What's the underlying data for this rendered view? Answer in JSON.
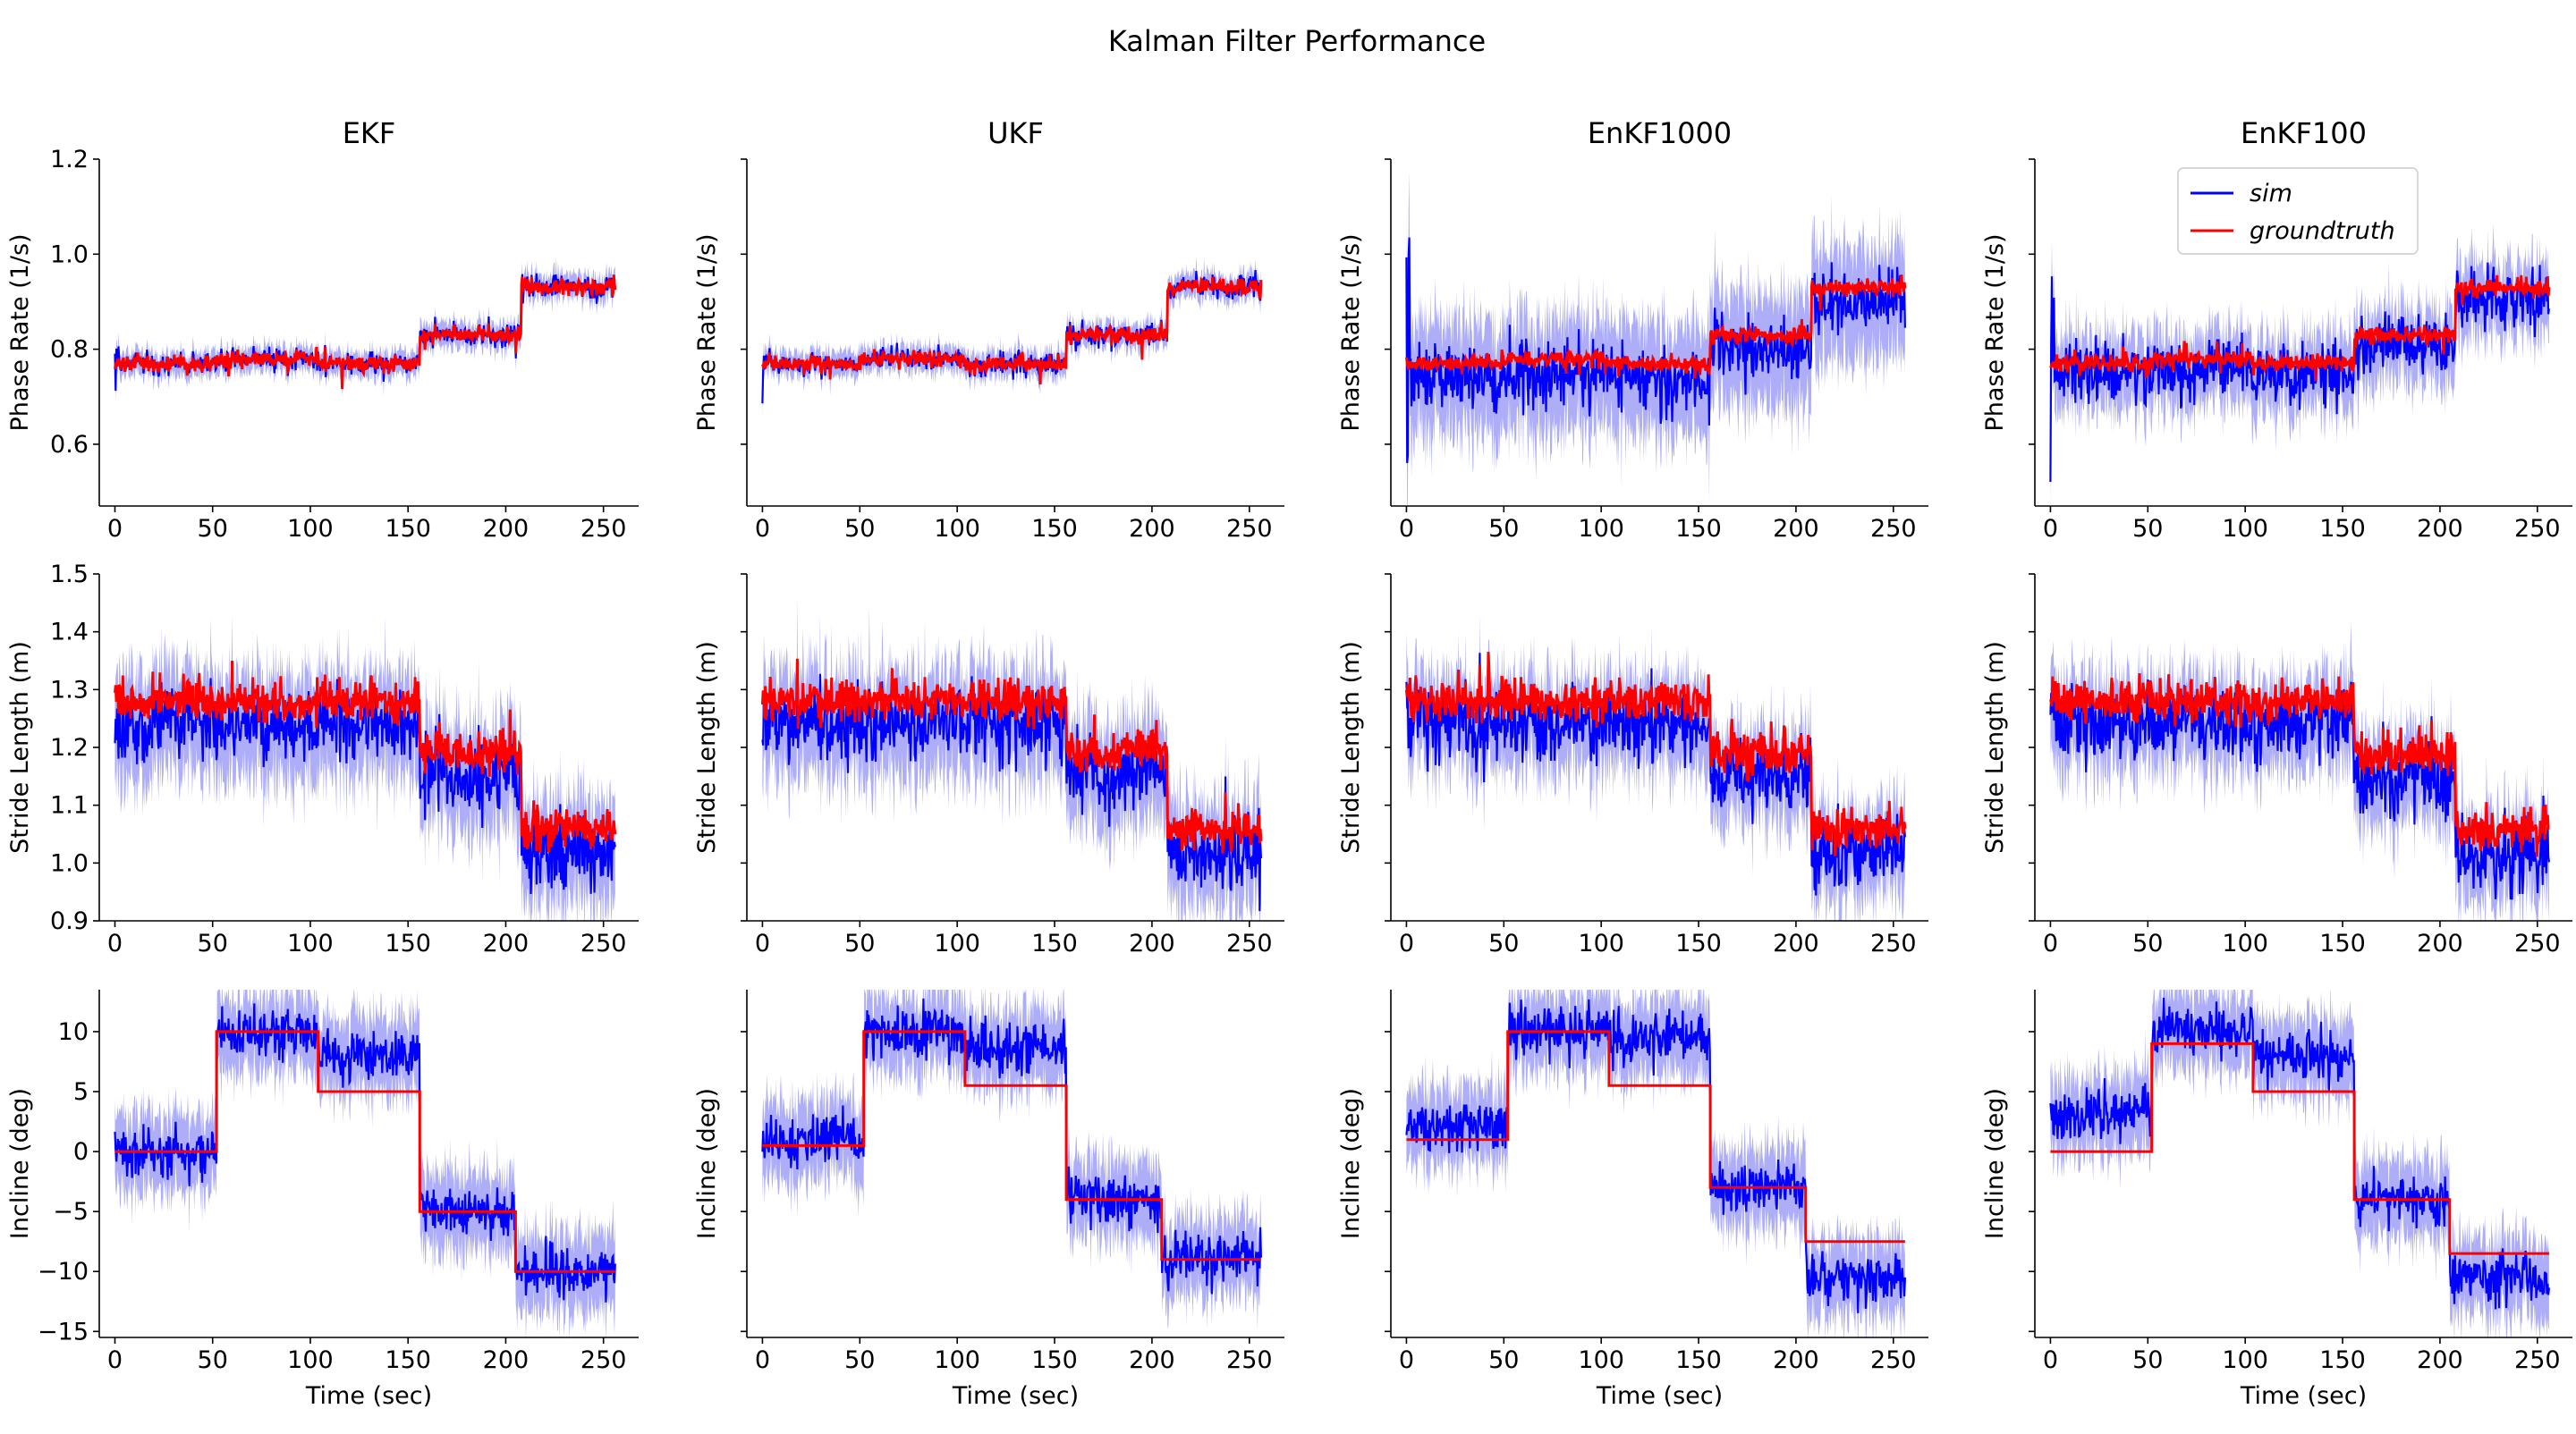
{
  "figure_title": "Kalman Filter Performance",
  "colors": {
    "sim": "#0000ff",
    "sim_band": "#8c8cf5",
    "groundtruth": "#ff0000",
    "axis": "#000000"
  },
  "legend": {
    "placement": "top-right of EnKF100 Phase Rate panel",
    "entries": [
      "sim",
      "groundtruth"
    ]
  },
  "chart_data": {
    "type": "line",
    "columns": [
      "EKF",
      "UKF",
      "EnKF1000",
      "EnKF100"
    ],
    "rows": [
      {
        "key": "phase",
        "ylabel": "Phase Rate (1/s)",
        "ylim": [
          0.47,
          1.2
        ],
        "yticks": [
          0.6,
          0.8,
          1.0,
          1.2
        ],
        "ytick_labels": [
          "0.6",
          "0.8",
          "1.0",
          "1.2"
        ]
      },
      {
        "key": "stride",
        "ylabel": "Stride Length (m)",
        "ylim": [
          0.9,
          1.5
        ],
        "yticks": [
          0.9,
          1.0,
          1.1,
          1.2,
          1.3,
          1.4,
          1.5
        ],
        "ytick_labels": [
          "0.9",
          "1.0",
          "1.1",
          "1.2",
          "1.3",
          "1.4",
          "1.5"
        ]
      },
      {
        "key": "incline",
        "ylabel": "Incline (deg)",
        "ylim": [
          -15.5,
          13.5
        ],
        "yticks": [
          -15,
          -10,
          -5,
          0,
          5,
          10
        ],
        "ytick_labels": [
          "−15",
          "−10",
          "−5",
          "0",
          "5",
          "10"
        ]
      }
    ],
    "xlim": [
      -8,
      268
    ],
    "xticks": [
      0,
      50,
      100,
      150,
      200,
      250
    ],
    "xtick_labels": [
      "0",
      "50",
      "100",
      "150",
      "200",
      "250"
    ],
    "xlabel": "Time (sec)",
    "groundtruth": {
      "phase_segments": [
        [
          0,
          52,
          0.77
        ],
        [
          52,
          104,
          0.78
        ],
        [
          104,
          156,
          0.77
        ],
        [
          156,
          208,
          0.83
        ],
        [
          208,
          256,
          0.93
        ]
      ],
      "stride_segments": [
        [
          0,
          52,
          1.28
        ],
        [
          52,
          104,
          1.28
        ],
        [
          104,
          156,
          1.28
        ],
        [
          156,
          208,
          1.19
        ],
        [
          208,
          256,
          1.06
        ]
      ],
      "incline": [
        [
          [
            0,
            52,
            0.0
          ],
          [
            52,
            104,
            10.0
          ],
          [
            104,
            156,
            5.0
          ],
          [
            156,
            205,
            -5.0
          ],
          [
            205,
            256,
            -10.0
          ]
        ],
        [
          [
            0,
            52,
            0.5
          ],
          [
            52,
            104,
            10.0
          ],
          [
            104,
            156,
            5.5
          ],
          [
            156,
            205,
            -4.0
          ],
          [
            205,
            256,
            -9.0
          ]
        ],
        [
          [
            0,
            52,
            1.0
          ],
          [
            52,
            104,
            10.0
          ],
          [
            104,
            156,
            5.5
          ],
          [
            156,
            205,
            -3.0
          ],
          [
            205,
            256,
            -7.5
          ]
        ],
        [
          [
            0,
            52,
            0.0
          ],
          [
            52,
            104,
            9.0
          ],
          [
            104,
            156,
            5.0
          ],
          [
            156,
            205,
            -4.0
          ],
          [
            205,
            256,
            -8.5
          ]
        ]
      ]
    },
    "sim_offsets": {
      "incline": [
        [
          [
            0,
            52,
            0.0
          ],
          [
            52,
            104,
            0.0
          ],
          [
            104,
            156,
            3.0
          ],
          [
            156,
            205,
            0.0
          ],
          [
            205,
            256,
            0.0
          ]
        ],
        [
          [
            0,
            52,
            0.5
          ],
          [
            52,
            104,
            0.0
          ],
          [
            104,
            156,
            3.0
          ],
          [
            156,
            205,
            0.0
          ],
          [
            205,
            256,
            0.0
          ]
        ],
        [
          [
            0,
            52,
            1.0
          ],
          [
            52,
            104,
            0.0
          ],
          [
            104,
            156,
            4.0
          ],
          [
            156,
            205,
            0.0
          ],
          [
            205,
            256,
            -3.0
          ]
        ],
        [
          [
            0,
            52,
            3.0
          ],
          [
            52,
            104,
            1.0
          ],
          [
            104,
            156,
            3.0
          ],
          [
            156,
            205,
            0.0
          ],
          [
            205,
            256,
            -2.0
          ]
        ]
      ],
      "stride": -0.04,
      "phase": [
        0.0,
        0.0,
        -0.03,
        -0.02
      ]
    },
    "noise_levels": {
      "phase": [
        0.012,
        0.012,
        0.05,
        0.045
      ],
      "stride": [
        0.04,
        0.04,
        0.04,
        0.04
      ],
      "incline": [
        1.5,
        1.5,
        1.5,
        1.5
      ],
      "band_phase": [
        0.02,
        0.02,
        0.09,
        0.06
      ],
      "band_stride": [
        0.07,
        0.07,
        0.06,
        0.06
      ],
      "band_incline": [
        2.5,
        2.5,
        2.5,
        2.5
      ]
    }
  }
}
